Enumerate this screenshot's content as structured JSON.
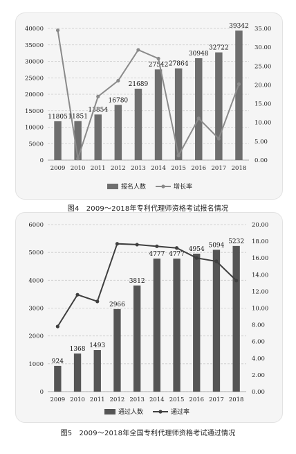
{
  "chart_data": [
    {
      "type": "bar+line",
      "categories": [
        "2009",
        "2010",
        "2011",
        "2012",
        "2013",
        "2014",
        "2015",
        "2016",
        "2017",
        "2018"
      ],
      "series": [
        {
          "name": "报名人数",
          "kind": "bar",
          "axis": "left",
          "values": [
            11805,
            11851,
            13854,
            16780,
            21689,
            27542,
            27864,
            30948,
            32722,
            39342
          ]
        },
        {
          "name": "增长率",
          "kind": "line",
          "axis": "right",
          "values": [
            34.5,
            0.4,
            16.9,
            21.1,
            29.3,
            27.0,
            1.2,
            11.1,
            5.7,
            20.2
          ]
        }
      ],
      "left_axis": {
        "min": 0,
        "max": 40000,
        "ticks": [
          "0",
          "5000",
          "10000",
          "15000",
          "20000",
          "25000",
          "30000",
          "35000",
          "40000"
        ]
      },
      "right_axis": {
        "min": 0,
        "max": 35,
        "ticks": [
          "0.00",
          "5.00",
          "10.00",
          "15.00",
          "20.00",
          "25.00",
          "30.00",
          "35.00"
        ]
      },
      "grid": true,
      "legend": "bottom",
      "caption": "图4　2009～2018年专利代理师资格考试报名情况",
      "colors": {
        "bar": "#6e6e6e",
        "line": "#8a8a8a",
        "grid": "#c9c9c9"
      }
    },
    {
      "type": "bar+line",
      "categories": [
        "2009",
        "2010",
        "2011",
        "2012",
        "2013",
        "2014",
        "2015",
        "2016",
        "2017",
        "2018"
      ],
      "series": [
        {
          "name": "通过人数",
          "kind": "bar",
          "axis": "left",
          "values": [
            924,
            1368,
            1493,
            2966,
            3812,
            4777,
            4777,
            4954,
            5094,
            5232
          ]
        },
        {
          "name": "通过率",
          "kind": "line",
          "axis": "right",
          "values": [
            7.8,
            11.6,
            10.8,
            17.7,
            17.6,
            17.4,
            17.2,
            16.0,
            15.6,
            13.3
          ]
        }
      ],
      "left_axis": {
        "min": 0,
        "max": 6000,
        "ticks": [
          "0",
          "1000",
          "2000",
          "3000",
          "4000",
          "5000",
          "6000"
        ]
      },
      "right_axis": {
        "min": 0,
        "max": 20,
        "ticks": [
          "0.00",
          "2.00",
          "4.00",
          "6.00",
          "8.00",
          "10.00",
          "12.00",
          "14.00",
          "16.00",
          "18.00",
          "20.00"
        ]
      },
      "grid": true,
      "legend": "bottom",
      "caption": "图5　2009～2018年全国专利代理师资格考试通过情况",
      "colors": {
        "bar": "#555555",
        "line": "#3f3f3f",
        "grid": "#c9c9c9"
      }
    }
  ]
}
